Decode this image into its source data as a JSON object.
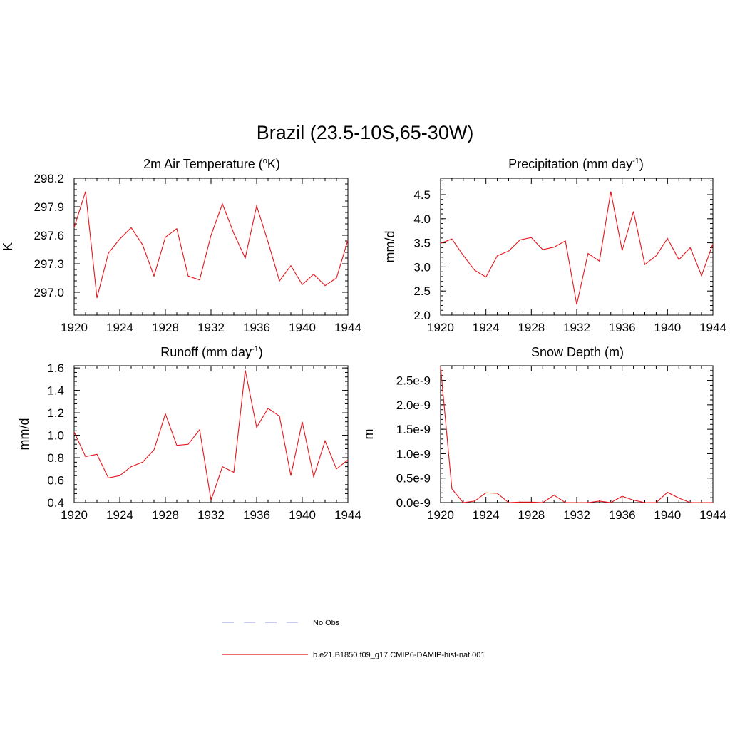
{
  "title": "Brazil (23.5-10S,65-30W)",
  "colors": {
    "model": "#e8141b",
    "obs": "#a9a9f0"
  },
  "legend": {
    "obs_label": "No Obs",
    "model_label": "b.e21.B1850.f09_g17.CMIP6-DAMIP-hist-nat.001"
  },
  "chart_data": [
    {
      "type": "line",
      "title": "2m Air Temperature (",
      "title_sup_pre": "o",
      "title_post": "K)",
      "title_sup_post": "",
      "title_end": "",
      "ylabel": "K",
      "xlim": [
        1920,
        1944
      ],
      "ylim": [
        296.76,
        298.2
      ],
      "xticks": [
        "1920",
        "1924",
        "1928",
        "1932",
        "1936",
        "1940",
        "1944"
      ],
      "yticks": [
        "297.0",
        "297.3",
        "297.6",
        "297.9",
        "298.2"
      ],
      "ytick_values": [
        297.0,
        297.3,
        297.6,
        297.9,
        298.2
      ],
      "x": [
        1920,
        1921,
        1922,
        1923,
        1924,
        1925,
        1926,
        1927,
        1928,
        1929,
        1930,
        1931,
        1932,
        1933,
        1934,
        1935,
        1936,
        1937,
        1938,
        1939,
        1940,
        1941,
        1942,
        1943,
        1944
      ],
      "series": [
        {
          "values": [
            297.68,
            298.06,
            296.94,
            297.41,
            297.56,
            297.68,
            297.5,
            297.17,
            297.58,
            297.67,
            297.17,
            297.13,
            297.6,
            297.93,
            297.62,
            297.36,
            297.91,
            297.53,
            297.12,
            297.28,
            297.08,
            297.19,
            297.07,
            297.15,
            297.55
          ]
        }
      ]
    },
    {
      "type": "line",
      "title": "Precipitation (mm day",
      "title_sup_pre": "",
      "title_post": "",
      "title_sup_post": "-1",
      "title_end": ")",
      "ylabel": "mm/d",
      "xlim": [
        1920,
        1944
      ],
      "ylim": [
        2.0,
        4.84
      ],
      "xticks": [
        "1920",
        "1924",
        "1928",
        "1932",
        "1936",
        "1940",
        "1944"
      ],
      "yticks": [
        "2.0",
        "2.5",
        "3.0",
        "3.5",
        "4.0",
        "4.5"
      ],
      "ytick_values": [
        2.0,
        2.5,
        3.0,
        3.5,
        4.0,
        4.5
      ],
      "x": [
        1920,
        1921,
        1922,
        1923,
        1924,
        1925,
        1926,
        1927,
        1928,
        1929,
        1930,
        1931,
        1932,
        1933,
        1934,
        1935,
        1936,
        1937,
        1938,
        1939,
        1940,
        1941,
        1942,
        1943,
        1944
      ],
      "series": [
        {
          "values": [
            3.49,
            3.58,
            3.24,
            2.93,
            2.79,
            3.23,
            3.33,
            3.56,
            3.61,
            3.36,
            3.41,
            3.54,
            2.22,
            3.28,
            3.12,
            4.56,
            3.34,
            4.15,
            3.05,
            3.23,
            3.59,
            3.15,
            3.4,
            2.82,
            3.48
          ]
        }
      ]
    },
    {
      "type": "line",
      "title": "Runoff (mm day",
      "title_sup_pre": "",
      "title_post": "",
      "title_sup_post": "-1",
      "title_end": ")",
      "ylabel": "mm/d",
      "xlim": [
        1920,
        1944
      ],
      "ylim": [
        0.4,
        1.62
      ],
      "xticks": [
        "1920",
        "1924",
        "1928",
        "1932",
        "1936",
        "1940",
        "1944"
      ],
      "yticks": [
        "0.4",
        "0.6",
        "0.8",
        "1.0",
        "1.2",
        "1.4",
        "1.6"
      ],
      "ytick_values": [
        0.4,
        0.6,
        0.8,
        1.0,
        1.2,
        1.4,
        1.6
      ],
      "x": [
        1920,
        1921,
        1922,
        1923,
        1924,
        1925,
        1926,
        1927,
        1928,
        1929,
        1930,
        1931,
        1932,
        1933,
        1934,
        1935,
        1936,
        1937,
        1938,
        1939,
        1940,
        1941,
        1942,
        1943,
        1944
      ],
      "series": [
        {
          "values": [
            1.03,
            0.81,
            0.83,
            0.62,
            0.64,
            0.72,
            0.76,
            0.87,
            1.19,
            0.91,
            0.92,
            1.05,
            0.42,
            0.72,
            0.67,
            1.58,
            1.07,
            1.24,
            1.17,
            0.64,
            1.12,
            0.63,
            0.95,
            0.7,
            0.78
          ]
        }
      ]
    },
    {
      "type": "line",
      "title": "Snow Depth (m)",
      "title_sup_pre": "",
      "title_post": "",
      "title_sup_post": "",
      "title_end": "",
      "ylabel": "m",
      "xlim": [
        1920,
        1944
      ],
      "ylim": [
        0.0,
        2.8e-09
      ],
      "xticks": [
        "1920",
        "1924",
        "1928",
        "1932",
        "1936",
        "1940",
        "1944"
      ],
      "yticks": [
        "0.0e-9",
        "0.5e-9",
        "1.0e-9",
        "1.5e-9",
        "2.0e-9",
        "2.5e-9"
      ],
      "ytick_values": [
        0.0,
        5e-10,
        1e-09,
        1.5e-09,
        2e-09,
        2.5e-09
      ],
      "x": [
        1920,
        1921,
        1922,
        1923,
        1924,
        1925,
        1926,
        1927,
        1928,
        1929,
        1930,
        1931,
        1932,
        1933,
        1934,
        1935,
        1936,
        1937,
        1938,
        1939,
        1940,
        1941,
        1942,
        1943,
        1944
      ],
      "series": [
        {
          "values": [
            2.78e-09,
            2.8e-10,
            0.0,
            3e-11,
            2e-10,
            1.9e-10,
            0.0,
            1e-11,
            1e-11,
            0.0,
            1.5e-10,
            0.0,
            0.0,
            0.0,
            3e-11,
            0.0,
            1.3e-10,
            5e-11,
            0.0,
            0.0,
            2.1e-10,
            9e-11,
            0.0,
            0.0,
            0.0
          ]
        }
      ]
    }
  ]
}
